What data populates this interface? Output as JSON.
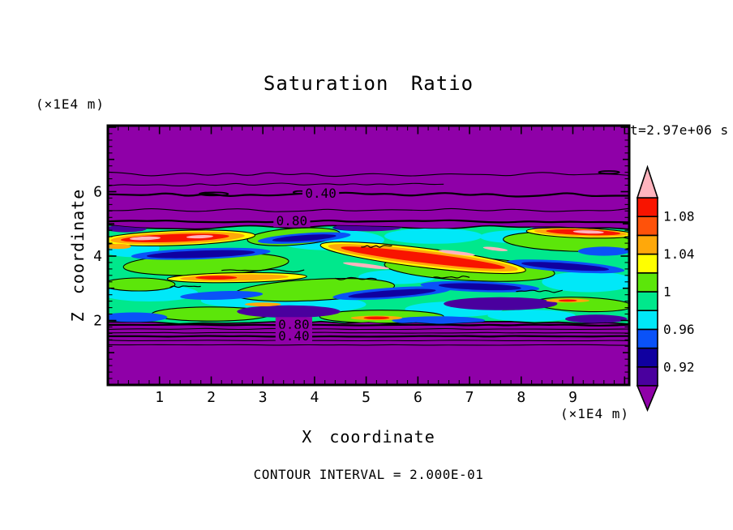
{
  "chart_data": {
    "type": "filled_contour",
    "title": "Saturation Ratio",
    "xlabel": "X coordinate",
    "ylabel": "Z coordinate",
    "x_units_label": "(×1E4 m)",
    "y_units_label": "(×1E4 m)",
    "time_label": "t=2.97e+06 s",
    "footnote": "CONTOUR INTERVAL = 2.000E-01",
    "contour_interval": 0.2,
    "xlim": [
      0,
      10.09
    ],
    "ylim": [
      0,
      8.05
    ],
    "xticks": [
      1,
      2,
      3,
      4,
      5,
      6,
      7,
      8,
      9
    ],
    "yticks": [
      2,
      4,
      6
    ],
    "x_minor_step": 0.2,
    "y_minor_step": 0.2,
    "grid": false,
    "field_background": "#8F00A8",
    "palette": {
      "purple": "#8F00A8",
      "violet": "#4A009E",
      "navy": "#1000A0",
      "blue": "#0A52F8",
      "cyan": "#00E8F8",
      "spring": "#00E88C",
      "chartreuse": "#5CE60A",
      "yellow": "#FFFF00",
      "orange": "#FFA80A",
      "orangered": "#FF520A",
      "red": "#F81400",
      "pink": "#FFB4BE"
    },
    "colorbar": {
      "position": "right",
      "segments_bottom_to_top": [
        {
          "range": "0.90-0.92",
          "color": "#4A009E"
        },
        {
          "range": "0.92-0.94",
          "color": "#1000A0"
        },
        {
          "range": "0.94-0.96",
          "color": "#0A52F8"
        },
        {
          "range": "0.96-0.98",
          "color": "#00E8F8"
        },
        {
          "range": "0.98-1.00",
          "color": "#00E88C"
        },
        {
          "range": "1.00-1.02",
          "color": "#5CE60A"
        },
        {
          "range": "1.02-1.04",
          "color": "#FFFF00"
        },
        {
          "range": "1.04-1.06",
          "color": "#FFA80A"
        },
        {
          "range": "1.06-1.08",
          "color": "#FF520A"
        },
        {
          "range": "1.08-1.10",
          "color": "#F81400"
        }
      ],
      "over_color": "#FFB4BE",
      "under_color": "#8F00A8",
      "level_min": 0.9,
      "level_max": 1.1,
      "tick_labels": [
        {
          "text": "1.08",
          "value": 1.08
        },
        {
          "text": "1.04",
          "value": 1.04
        },
        {
          "text": "1",
          "value": 1.0
        },
        {
          "text": "0.96",
          "value": 0.96
        },
        {
          "text": "0.92",
          "value": 0.92
        }
      ]
    },
    "band": {
      "base_color": "#00E88C",
      "top_z": 4.9,
      "bottom_z": 1.93,
      "top_amp": 0.07,
      "bottom_amp": 0.04
    },
    "contour_lines": [
      {
        "z": 6.54,
        "weight": 1.1,
        "amp": 0.08,
        "seed": 1
      },
      {
        "z": 6.22,
        "weight": 1.1,
        "amp": 0.05,
        "seed": 2,
        "u0": 0,
        "u1": 6.5
      },
      {
        "z": 5.91,
        "weight": 2.2,
        "amp": 0.07,
        "seed": 3,
        "label": "0.40",
        "label_u": 4.12,
        "label_z": 5.95
      },
      {
        "z": 5.43,
        "weight": 1.1,
        "amp": 0.06,
        "seed": 4
      },
      {
        "z": 5.08,
        "weight": 2.2,
        "amp": 0.04,
        "seed": 5,
        "label": "0.80",
        "label_u": 3.56,
        "label_z": 5.1
      },
      {
        "z": 1.86,
        "weight": 2.2,
        "amp": 0.02,
        "seed": 6,
        "label": "0.80",
        "label_u": 3.6,
        "label_z": 1.88
      },
      {
        "z": 1.74,
        "weight": 1.1,
        "amp": 0.02,
        "seed": 7
      },
      {
        "z": 1.62,
        "weight": 1.1,
        "amp": 0.015,
        "seed": 8
      },
      {
        "z": 1.51,
        "weight": 2.2,
        "amp": 0.015,
        "seed": 9,
        "label": "0.40",
        "label_u": 3.6,
        "label_z": 1.52
      },
      {
        "z": 1.38,
        "weight": 1.1,
        "amp": 0.012,
        "seed": 10
      },
      {
        "z": 1.24,
        "weight": 1.1,
        "amp": 0.012,
        "seed": 11
      }
    ],
    "closed_contours": [
      {
        "u": 2.05,
        "z": 5.93,
        "ru": 0.28,
        "rz": 0.05
      },
      {
        "u": 3.72,
        "z": 5.98,
        "ru": 0.13,
        "rz": 0.04
      },
      {
        "u": 9.7,
        "z": 6.6,
        "ru": 0.2,
        "rz": 0.04
      }
    ],
    "patches": [
      {
        "c": "cyan",
        "x": 4.3,
        "z": 4.5,
        "ru": 1.05,
        "rz": 0.32
      },
      {
        "c": "cyan",
        "x": 0.8,
        "z": 2.85,
        "ru": 0.95,
        "rz": 0.26
      },
      {
        "c": "cyan",
        "x": 4.0,
        "z": 2.5,
        "ru": 1.0,
        "rz": 0.24
      },
      {
        "c": "cyan",
        "x": 6.7,
        "z": 2.35,
        "ru": 0.95,
        "rz": 0.24
      },
      {
        "c": "cyan",
        "x": 9.3,
        "z": 3.2,
        "ru": 0.9,
        "rz": 0.32
      },
      {
        "c": "cyan",
        "x": 6.3,
        "z": 4.62,
        "ru": 0.95,
        "rz": 0.24
      },
      {
        "c": "cyan",
        "x": 2.55,
        "z": 2.62,
        "ru": 0.75,
        "rz": 0.2
      },
      {
        "c": "cyan",
        "x": 8.2,
        "z": 2.15,
        "ru": 0.85,
        "rz": 0.18
      },
      {
        "c": "cyan",
        "x": 5.6,
        "z": 3.35,
        "ru": 0.75,
        "rz": 0.22
      },
      {
        "c": "cyan",
        "x": 0.45,
        "z": 4.25,
        "ru": 0.55,
        "rz": 0.28
      },
      {
        "c": "cyan",
        "x": 7.9,
        "z": 4.6,
        "ru": 0.7,
        "rz": 0.2
      },
      {
        "c": "chartreuse",
        "x": 1.9,
        "z": 3.75,
        "ru": 1.6,
        "rz": 0.34,
        "o": 1,
        "rot": -2
      },
      {
        "c": "chartreuse",
        "x": 4.0,
        "z": 2.95,
        "ru": 1.55,
        "rz": 0.33,
        "o": 1,
        "rot": -3
      },
      {
        "c": "chartreuse",
        "x": 7.0,
        "z": 3.6,
        "ru": 1.65,
        "rz": 0.36,
        "o": 1,
        "rot": 3
      },
      {
        "c": "chartreuse",
        "x": 8.95,
        "z": 4.45,
        "ru": 1.3,
        "rz": 0.3,
        "o": 1,
        "rot": 2
      },
      {
        "c": "chartreuse",
        "x": 2.0,
        "z": 2.2,
        "ru": 1.15,
        "rz": 0.22,
        "o": 1
      },
      {
        "c": "chartreuse",
        "x": 5.3,
        "z": 2.12,
        "ru": 1.2,
        "rz": 0.2,
        "o": 1
      },
      {
        "c": "chartreuse",
        "x": 9.2,
        "z": 2.5,
        "ru": 0.95,
        "rz": 0.22,
        "o": 1,
        "rot": 2
      },
      {
        "c": "chartreuse",
        "x": 0.6,
        "z": 3.12,
        "ru": 0.7,
        "rz": 0.2,
        "o": 1
      },
      {
        "c": "chartreuse",
        "x": 3.6,
        "z": 4.6,
        "ru": 0.9,
        "rz": 0.26,
        "o": 1,
        "rot": -4
      },
      {
        "c": "blue",
        "x": 1.8,
        "z": 4.07,
        "ru": 1.35,
        "rz": 0.17,
        "rot": -2
      },
      {
        "c": "blue",
        "x": 3.8,
        "z": 4.56,
        "ru": 0.9,
        "rz": 0.15,
        "rot": -4
      },
      {
        "c": "blue",
        "x": 5.5,
        "z": 2.85,
        "ru": 1.15,
        "rz": 0.17,
        "rot": -4
      },
      {
        "c": "blue",
        "x": 7.2,
        "z": 3.05,
        "ru": 1.15,
        "rz": 0.16,
        "rot": 2
      },
      {
        "c": "blue",
        "x": 8.85,
        "z": 3.68,
        "ru": 1.15,
        "rz": 0.17,
        "rot": 4
      },
      {
        "c": "blue",
        "x": 0.5,
        "z": 2.1,
        "ru": 0.65,
        "rz": 0.15
      },
      {
        "c": "blue",
        "x": 6.4,
        "z": 2.0,
        "ru": 0.9,
        "rz": 0.13
      },
      {
        "c": "blue",
        "x": 2.2,
        "z": 2.78,
        "ru": 0.8,
        "rz": 0.13,
        "rot": -2
      },
      {
        "c": "blue",
        "x": 9.6,
        "z": 4.15,
        "ru": 0.5,
        "rz": 0.14
      },
      {
        "c": "navy",
        "x": 1.8,
        "z": 4.06,
        "ru": 1.05,
        "rz": 0.11,
        "rot": -2
      },
      {
        "c": "navy",
        "x": 3.8,
        "z": 4.56,
        "ru": 0.62,
        "rz": 0.09,
        "rot": -4
      },
      {
        "c": "navy",
        "x": 5.5,
        "z": 2.84,
        "ru": 0.85,
        "rz": 0.1,
        "rot": -4
      },
      {
        "c": "navy",
        "x": 7.2,
        "z": 3.05,
        "ru": 0.8,
        "rz": 0.1,
        "rot": 2
      },
      {
        "c": "navy",
        "x": 8.85,
        "z": 3.68,
        "ru": 0.85,
        "rz": 0.1,
        "rot": 4
      },
      {
        "c": "navy",
        "x": 4.85,
        "z": 4.88,
        "ru": 0.5,
        "rz": 0.1
      },
      {
        "c": "violet",
        "x": 3.5,
        "z": 2.28,
        "ru": 1.0,
        "rz": 0.19
      },
      {
        "c": "violet",
        "x": 7.6,
        "z": 2.52,
        "ru": 1.1,
        "rz": 0.2
      },
      {
        "c": "violet",
        "x": 5.05,
        "z": 4.9,
        "ru": 0.65,
        "rz": 0.13
      },
      {
        "c": "violet",
        "x": 9.45,
        "z": 2.05,
        "ru": 0.6,
        "rz": 0.13
      },
      {
        "c": "violet",
        "x": 0.35,
        "z": 4.85,
        "ru": 0.4,
        "rz": 0.11
      },
      {
        "c": "violet",
        "x": 8.7,
        "z": 4.92,
        "ru": 0.55,
        "rz": 0.1
      },
      {
        "c": "yellow",
        "x": 1.35,
        "z": 4.56,
        "ru": 1.5,
        "rz": 0.23,
        "o": 1,
        "rot": -2
      },
      {
        "c": "orange",
        "x": 1.35,
        "z": 4.56,
        "ru": 1.3,
        "rz": 0.18,
        "rot": -2
      },
      {
        "c": "red",
        "x": 1.3,
        "z": 4.56,
        "ru": 1.05,
        "rz": 0.12,
        "rot": -2
      },
      {
        "c": "pink",
        "x": 0.72,
        "z": 4.55,
        "ru": 0.3,
        "rz": 0.055,
        "rot": -2
      },
      {
        "c": "pink",
        "x": 1.78,
        "z": 4.6,
        "ru": 0.26,
        "rz": 0.05,
        "rot": -2
      },
      {
        "c": "yellow",
        "x": 2.5,
        "z": 3.33,
        "ru": 1.35,
        "rz": 0.15,
        "o": 1,
        "rot": -1
      },
      {
        "c": "orange",
        "x": 2.45,
        "z": 3.33,
        "ru": 1.05,
        "rz": 0.1,
        "rot": -1
      },
      {
        "c": "red",
        "x": 2.1,
        "z": 3.33,
        "ru": 0.4,
        "rz": 0.06
      },
      {
        "c": "yellow",
        "x": 6.1,
        "z": 3.95,
        "ru": 2.0,
        "rz": 0.3,
        "o": 1,
        "rot": 7
      },
      {
        "c": "orange",
        "x": 6.1,
        "z": 3.95,
        "ru": 1.85,
        "rz": 0.23,
        "rot": 7
      },
      {
        "c": "red",
        "x": 6.1,
        "z": 3.95,
        "ru": 1.6,
        "rz": 0.15,
        "rot": 7
      },
      {
        "c": "pink",
        "x": 5.0,
        "z": 3.7,
        "ru": 0.45,
        "rz": 0.06,
        "rot": 7
      },
      {
        "c": "pink",
        "x": 6.75,
        "z": 4.1,
        "ru": 0.36,
        "rz": 0.055,
        "rot": 7
      },
      {
        "c": "pink",
        "x": 7.5,
        "z": 4.22,
        "ru": 0.24,
        "rz": 0.05,
        "rot": 7
      },
      {
        "c": "yellow",
        "x": 9.15,
        "z": 4.72,
        "ru": 1.05,
        "rz": 0.15,
        "o": 1,
        "rot": 2
      },
      {
        "c": "orange",
        "x": 9.15,
        "z": 4.73,
        "ru": 0.9,
        "rz": 0.12,
        "rot": 2
      },
      {
        "c": "red",
        "x": 9.2,
        "z": 4.74,
        "ru": 0.72,
        "rz": 0.085,
        "rot": 2
      },
      {
        "c": "pink",
        "x": 9.3,
        "z": 4.75,
        "ru": 0.3,
        "rz": 0.05,
        "rot": 2
      },
      {
        "c": "orange",
        "x": 5.2,
        "z": 2.08,
        "ru": 0.5,
        "rz": 0.07
      },
      {
        "c": "red",
        "x": 5.2,
        "z": 2.08,
        "ru": 0.25,
        "rz": 0.045
      },
      {
        "c": "orange",
        "x": 3.0,
        "z": 2.5,
        "ru": 0.35,
        "rz": 0.06
      },
      {
        "c": "orange",
        "x": 8.9,
        "z": 2.62,
        "ru": 0.42,
        "rz": 0.06
      },
      {
        "c": "red",
        "x": 8.9,
        "z": 2.62,
        "ru": 0.18,
        "rz": 0.035
      },
      {
        "c": "orange",
        "x": 0.2,
        "z": 4.3,
        "ru": 0.25,
        "rz": 0.08
      }
    ],
    "scribbles": [
      {
        "u0": 2.2,
        "z": 3.55,
        "len": 1.6,
        "amp": 0.05,
        "seed": 21
      },
      {
        "u0": 4.4,
        "z": 3.3,
        "len": 0.8,
        "amp": 0.04,
        "seed": 22
      },
      {
        "u0": 6.3,
        "z": 3.35,
        "len": 0.7,
        "amp": 0.04,
        "seed": 23
      },
      {
        "u0": 1.2,
        "z": 3.05,
        "len": 0.6,
        "amp": 0.04,
        "seed": 24
      },
      {
        "u0": 4.9,
        "z": 4.3,
        "len": 0.6,
        "amp": 0.05,
        "seed": 25
      },
      {
        "u0": 7.9,
        "z": 2.9,
        "len": 0.9,
        "amp": 0.04,
        "seed": 26
      }
    ]
  }
}
